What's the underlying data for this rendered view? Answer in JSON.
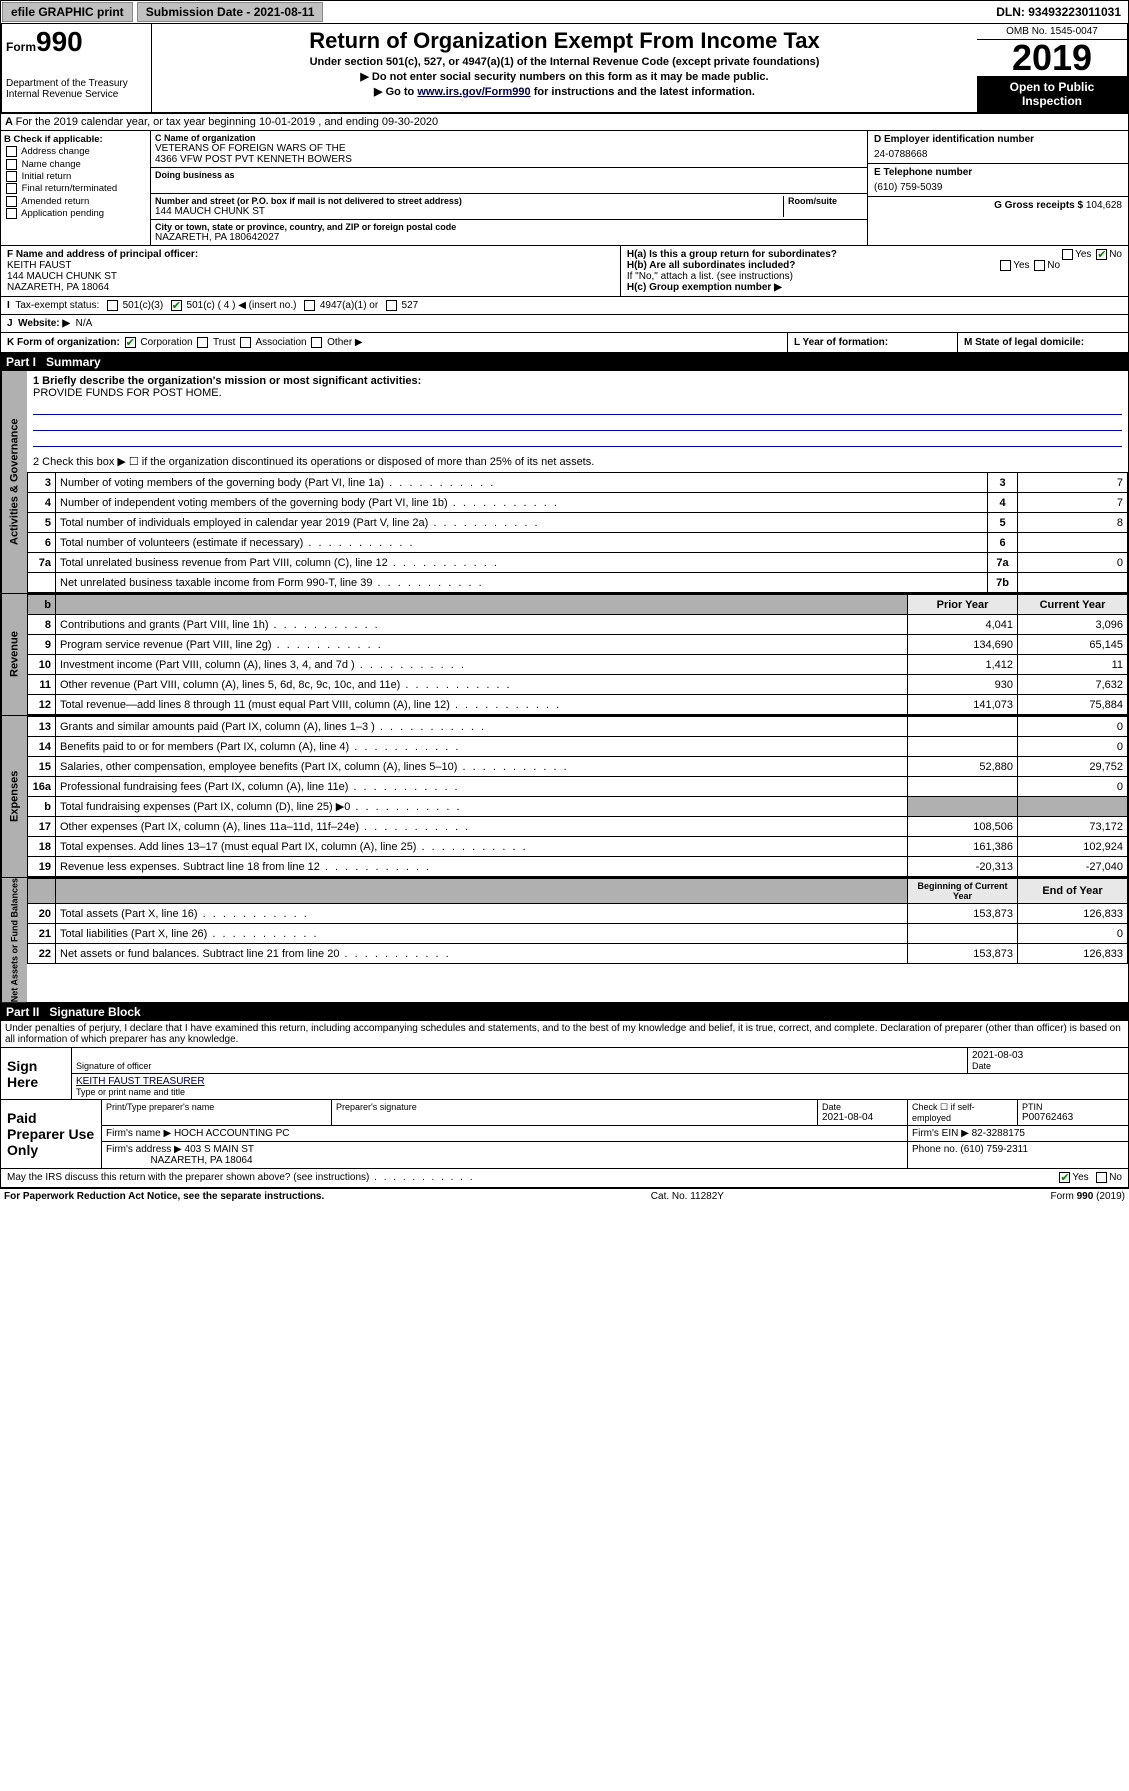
{
  "topbar": {
    "efile": "efile GRAPHIC print",
    "subdate_label": "Submission Date - 2021-08-11",
    "dln": "DLN: 93493223011031"
  },
  "header": {
    "formword": "Form",
    "formno": "990",
    "title": "Return of Organization Exempt From Income Tax",
    "sub1": "Under section 501(c), 527, or 4947(a)(1) of the Internal Revenue Code (except private foundations)",
    "sub2": "▶ Do not enter social security numbers on this form as it may be made public.",
    "sub3_pre": "▶ Go to ",
    "sub3_link": "www.irs.gov/Form990",
    "sub3_post": " for instructions and the latest information.",
    "dept": "Department of the Treasury\nInternal Revenue Service",
    "omb": "OMB No. 1545-0047",
    "year": "2019",
    "openpub": "Open to Public Inspection"
  },
  "period": "For the 2019 calendar year, or tax year beginning 10-01-2019   , and ending 09-30-2020",
  "boxB": {
    "label": "B Check if applicable:",
    "opts": [
      "Address change",
      "Name change",
      "Initial return",
      "Final return/terminated",
      "Amended return",
      "Application pending"
    ]
  },
  "boxC": {
    "name_label": "C Name of organization",
    "name1": "VETERANS OF FOREIGN WARS OF THE",
    "name2": "4366 VFW POST PVT KENNETH BOWERS",
    "dba_label": "Doing business as",
    "street_label": "Number and street (or P.O. box if mail is not delivered to street address)",
    "room_label": "Room/suite",
    "street": "144 MAUCH CHUNK ST",
    "city_label": "City or town, state or province, country, and ZIP or foreign postal code",
    "city": "NAZARETH, PA  180642027"
  },
  "boxD": {
    "label": "D Employer identification number",
    "val": "24-0788668"
  },
  "boxE": {
    "label": "E Telephone number",
    "val": "(610) 759-5039"
  },
  "boxG": {
    "label": "G Gross receipts $",
    "val": "104,628"
  },
  "boxF": {
    "label": "F  Name and address of principal officer:",
    "line1": "KEITH FAUST",
    "line2": "144 MAUCH CHUNK ST",
    "line3": "NAZARETH, PA  18064"
  },
  "boxH": {
    "ha": "H(a)  Is this a group return for subordinates?",
    "hb": "H(b)  Are all subordinates included?",
    "hb_note": "If \"No,\" attach a list. (see instructions)",
    "hc": "H(c)  Group exemption number ▶"
  },
  "boxI": {
    "label": "Tax-exempt status:",
    "o1": "501(c)(3)",
    "o2": "501(c) ( 4 ) ◀ (insert no.)",
    "o3": "4947(a)(1) or",
    "o4": "527"
  },
  "boxJ": {
    "label": "Website: ▶",
    "val": "N/A"
  },
  "boxK": "K Form of organization:",
  "kopts": [
    "Corporation",
    "Trust",
    "Association",
    "Other ▶"
  ],
  "boxL": "L Year of formation:",
  "boxM": "M State of legal domicile:",
  "part1": {
    "no": "Part I",
    "title": "Summary"
  },
  "summary": {
    "l1_label": "1  Briefly describe the organization's mission or most significant activities:",
    "l1_val": "PROVIDE FUNDS FOR POST HOME.",
    "l2": "2   Check this box ▶ ☐  if the organization discontinued its operations or disposed of more than 25% of its net assets.",
    "rows_top": [
      {
        "n": "3",
        "t": "Number of voting members of the governing body (Part VI, line 1a)",
        "box": "3",
        "v": "7"
      },
      {
        "n": "4",
        "t": "Number of independent voting members of the governing body (Part VI, line 1b)",
        "box": "4",
        "v": "7"
      },
      {
        "n": "5",
        "t": "Total number of individuals employed in calendar year 2019 (Part V, line 2a)",
        "box": "5",
        "v": "8"
      },
      {
        "n": "6",
        "t": "Total number of volunteers (estimate if necessary)",
        "box": "6",
        "v": ""
      },
      {
        "n": "7a",
        "t": "Total unrelated business revenue from Part VIII, column (C), line 12",
        "box": "7a",
        "v": "0"
      },
      {
        "n": "",
        "t": "Net unrelated business taxable income from Form 990-T, line 39",
        "box": "7b",
        "v": ""
      }
    ],
    "col_prior": "Prior Year",
    "col_curr": "Current Year",
    "revenue": [
      {
        "n": "8",
        "t": "Contributions and grants (Part VIII, line 1h)",
        "p": "4,041",
        "c": "3,096"
      },
      {
        "n": "9",
        "t": "Program service revenue (Part VIII, line 2g)",
        "p": "134,690",
        "c": "65,145"
      },
      {
        "n": "10",
        "t": "Investment income (Part VIII, column (A), lines 3, 4, and 7d )",
        "p": "1,412",
        "c": "11"
      },
      {
        "n": "11",
        "t": "Other revenue (Part VIII, column (A), lines 5, 6d, 8c, 9c, 10c, and 11e)",
        "p": "930",
        "c": "7,632"
      },
      {
        "n": "12",
        "t": "Total revenue—add lines 8 through 11 (must equal Part VIII, column (A), line 12)",
        "p": "141,073",
        "c": "75,884"
      }
    ],
    "expenses": [
      {
        "n": "13",
        "t": "Grants and similar amounts paid (Part IX, column (A), lines 1–3 )",
        "p": "",
        "c": "0"
      },
      {
        "n": "14",
        "t": "Benefits paid to or for members (Part IX, column (A), line 4)",
        "p": "",
        "c": "0"
      },
      {
        "n": "15",
        "t": "Salaries, other compensation, employee benefits (Part IX, column (A), lines 5–10)",
        "p": "52,880",
        "c": "29,752"
      },
      {
        "n": "16a",
        "t": "Professional fundraising fees (Part IX, column (A), line 11e)",
        "p": "",
        "c": "0"
      },
      {
        "n": "b",
        "t": "Total fundraising expenses (Part IX, column (D), line 25) ▶0",
        "p": "GREY",
        "c": "GREY"
      },
      {
        "n": "17",
        "t": "Other expenses (Part IX, column (A), lines 11a–11d, 11f–24e)",
        "p": "108,506",
        "c": "73,172"
      },
      {
        "n": "18",
        "t": "Total expenses. Add lines 13–17 (must equal Part IX, column (A), line 25)",
        "p": "161,386",
        "c": "102,924"
      },
      {
        "n": "19",
        "t": "Revenue less expenses. Subtract line 18 from line 12",
        "p": "-20,313",
        "c": "-27,040"
      }
    ],
    "col_beg": "Beginning of Current Year",
    "col_end": "End of Year",
    "netassets": [
      {
        "n": "20",
        "t": "Total assets (Part X, line 16)",
        "p": "153,873",
        "c": "126,833"
      },
      {
        "n": "21",
        "t": "Total liabilities (Part X, line 26)",
        "p": "",
        "c": "0"
      },
      {
        "n": "22",
        "t": "Net assets or fund balances. Subtract line 21 from line 20",
        "p": "153,873",
        "c": "126,833"
      }
    ]
  },
  "part2": {
    "no": "Part II",
    "title": "Signature Block"
  },
  "perjury": "Under penalties of perjury, I declare that I have examined this return, including accompanying schedules and statements, and to the best of my knowledge and belief, it is true, correct, and complete. Declaration of preparer (other than officer) is based on all information of which preparer has any knowledge.",
  "sign": {
    "here": "Sign Here",
    "sig_of": "Signature of officer",
    "date1": "2021-08-03",
    "date_l": "Date",
    "name": "KEITH FAUST TREASURER",
    "name_l": "Type or print name and title"
  },
  "paid": {
    "label": "Paid Preparer Use Only",
    "h1": "Print/Type preparer's name",
    "h2": "Preparer's signature",
    "h3": "Date",
    "date": "2021-08-04",
    "h4": "Check ☐ if self-employed",
    "h5": "PTIN",
    "ptin": "P00762463",
    "firm_l": "Firm's name    ▶",
    "firm": "HOCH ACCOUNTING PC",
    "ein_l": "Firm's EIN ▶",
    "ein": "82-3288175",
    "addr_l": "Firm's address ▶",
    "addr1": "403 S MAIN ST",
    "addr2": "NAZARETH, PA  18064",
    "phone_l": "Phone no.",
    "phone": "(610) 759-2311"
  },
  "discuss": "May the IRS discuss this return with the preparer shown above? (see instructions)",
  "foot": {
    "l": "For Paperwork Reduction Act Notice, see the separate instructions.",
    "m": "Cat. No. 11282Y",
    "r": "Form 990 (2019)"
  },
  "yesno": {
    "yes": "Yes",
    "no": "No"
  }
}
